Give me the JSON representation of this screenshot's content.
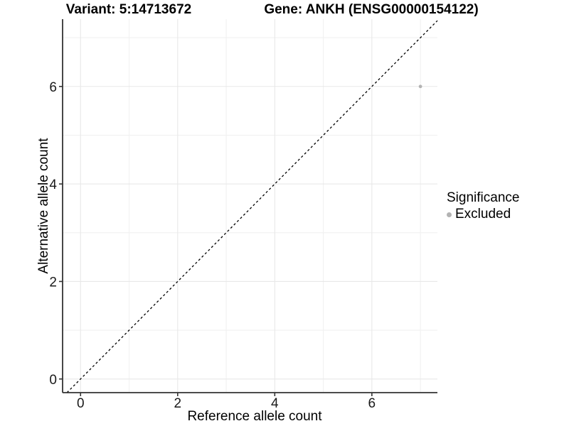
{
  "chart_data": {
    "type": "scatter",
    "title_left": "Variant: 5:14713672",
    "title_right": "Gene: ANKH (ENSG00000154122)",
    "xlabel": "Reference allele count",
    "ylabel": "Alternative allele count",
    "xlim": [
      -0.37,
      7.35
    ],
    "ylim": [
      -0.28,
      7.38
    ],
    "xticks": [
      0,
      2,
      4,
      6
    ],
    "yticks": [
      0,
      2,
      4,
      6
    ],
    "grid_x": [
      0,
      1,
      2,
      3,
      4,
      5,
      6,
      7
    ],
    "grid_y": [
      0,
      1,
      2,
      3,
      4,
      5,
      6,
      7
    ],
    "grid": true,
    "identity_line": {
      "style": "dashed",
      "slope": 1,
      "intercept": 0
    },
    "series": [
      {
        "name": "Excluded",
        "color": "#b3b3b3",
        "points": [
          {
            "x": 7,
            "y": 6
          }
        ]
      }
    ],
    "legend": {
      "title": "Significance",
      "position": "right",
      "items": [
        {
          "label": "Excluded",
          "color": "#b3b3b3"
        }
      ]
    }
  },
  "colors": {
    "background": "#ffffff",
    "grid_major": "#e8e8e8",
    "grid_minor": "#f1f1f1",
    "axis": "#333333",
    "tick_text": "#1a1a1a",
    "identity_line": "#000000"
  }
}
